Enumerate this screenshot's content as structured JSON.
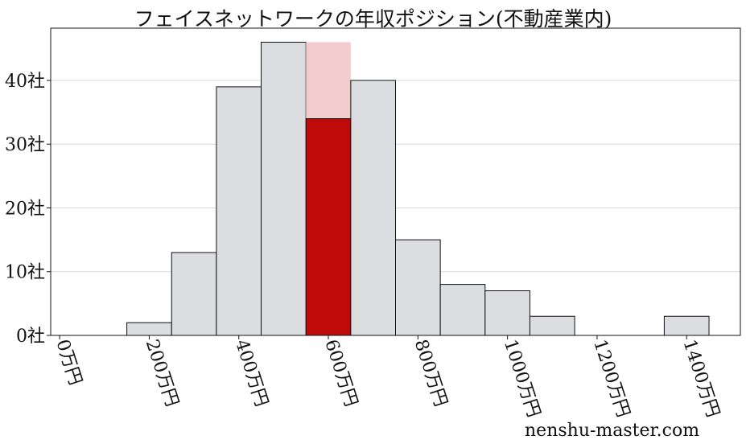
{
  "chart_data": {
    "type": "bar",
    "title": "フェイスネットワークの年収ポジション(不動産業内)",
    "x_unit": "万円",
    "y_unit": "社",
    "bin_width": 100,
    "bins": [
      {
        "start": 150,
        "count": 2
      },
      {
        "start": 250,
        "count": 13
      },
      {
        "start": 350,
        "count": 39
      },
      {
        "start": 450,
        "count": 46
      },
      {
        "start": 550,
        "count": 46,
        "highlight_count": 34
      },
      {
        "start": 650,
        "count": 40
      },
      {
        "start": 750,
        "count": 15
      },
      {
        "start": 850,
        "count": 8
      },
      {
        "start": 950,
        "count": 7
      },
      {
        "start": 1050,
        "count": 3
      },
      {
        "start": 1350,
        "count": 3
      }
    ],
    "x_ticks": [
      {
        "value": 0,
        "label": "0万円"
      },
      {
        "value": 200,
        "label": "200万円"
      },
      {
        "value": 400,
        "label": "400万円"
      },
      {
        "value": 600,
        "label": "600万円"
      },
      {
        "value": 800,
        "label": "800万円"
      },
      {
        "value": 1000,
        "label": "1000万円"
      },
      {
        "value": 1200,
        "label": "1200万円"
      },
      {
        "value": 1400,
        "label": "1400万円"
      }
    ],
    "y_ticks": [
      {
        "value": 0,
        "label": "0社"
      },
      {
        "value": 10,
        "label": "10社"
      },
      {
        "value": 20,
        "label": "20社"
      },
      {
        "value": 30,
        "label": "30社"
      },
      {
        "value": 40,
        "label": "40社"
      }
    ],
    "xlim": [
      -20,
      1520
    ],
    "ylim": [
      0,
      48.2
    ],
    "grid": "horizontal",
    "legend": "none",
    "colors": {
      "bar": "#dcdde0",
      "highlight": "#bf0a0a",
      "highlight_bg": "#f2cccc",
      "edge": "#111111",
      "grid": "#d9d9d9"
    }
  },
  "watermark": "nenshu-master.com"
}
